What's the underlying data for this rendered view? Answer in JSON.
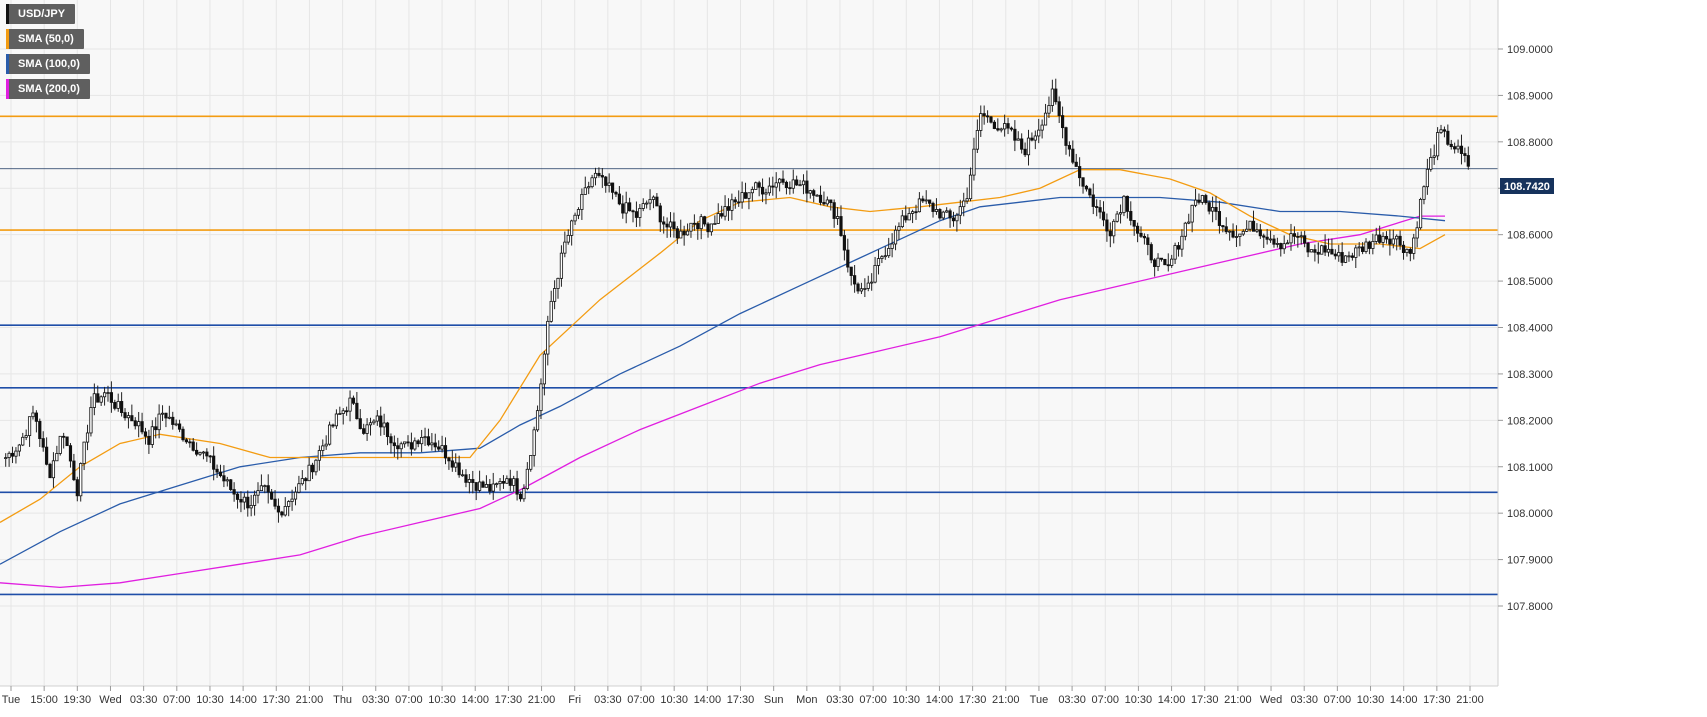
{
  "legend": [
    {
      "label": "USD/JPY",
      "color": "#111111"
    },
    {
      "label": "SMA (50,0)",
      "color": "#f39c12"
    },
    {
      "label": "SMA (100,0)",
      "color": "#2a5caa"
    },
    {
      "label": "SMA (200,0)",
      "color": "#e01fe0"
    }
  ],
  "price_badge": "108.7420",
  "chart_data": {
    "type": "candlestick",
    "symbol": "USD/JPY",
    "ylim": [
      107.75,
      109.1
    ],
    "y_ticks": [
      "107.8000",
      "107.9000",
      "108.0000",
      "108.1000",
      "108.2000",
      "108.3000",
      "108.4000",
      "108.5000",
      "108.6000",
      "108.7000",
      "108.8000",
      "108.9000",
      "109.0000"
    ],
    "x_ticks": [
      "Tue",
      "15:00",
      "19:30",
      "Wed",
      "03:30",
      "07:00",
      "10:30",
      "14:00",
      "17:30",
      "21:00",
      "Thu",
      "03:30",
      "07:00",
      "10:30",
      "14:00",
      "17:30",
      "21:00",
      "Fri",
      "03:30",
      "07:00",
      "10:30",
      "14:00",
      "17:30",
      "Sun",
      "Mon",
      "03:30",
      "07:00",
      "10:30",
      "14:00",
      "17:30",
      "21:00",
      "Tue",
      "03:30",
      "07:00",
      "10:30",
      "14:00",
      "17:30",
      "21:00",
      "Wed",
      "03:30",
      "07:00",
      "10:30",
      "14:00",
      "17:30",
      "21:00"
    ],
    "last_price": 108.742,
    "horizontal_levels": [
      {
        "value": 108.855,
        "color": "#f39c12"
      },
      {
        "value": 108.61,
        "color": "#f39c12"
      },
      {
        "value": 108.405,
        "color": "#1f4ea8"
      },
      {
        "value": 108.27,
        "color": "#1f4ea8"
      },
      {
        "value": 108.045,
        "color": "#1f4ea8"
      },
      {
        "value": 107.825,
        "color": "#1f4ea8"
      }
    ],
    "price_path": [
      108.12,
      108.15,
      108.22,
      108.08,
      108.18,
      108.05,
      108.24,
      108.26,
      108.22,
      108.2,
      108.16,
      108.22,
      108.18,
      108.15,
      108.12,
      108.08,
      108.04,
      108.02,
      108.05,
      108.0,
      108.04,
      108.08,
      108.14,
      108.2,
      108.24,
      108.18,
      108.2,
      108.16,
      108.14,
      108.17,
      108.15,
      108.12,
      108.08,
      108.06,
      108.05,
      108.08,
      108.04,
      108.2,
      108.45,
      108.58,
      108.66,
      108.73,
      108.7,
      108.66,
      108.64,
      108.68,
      108.62,
      108.6,
      108.63,
      108.62,
      108.65,
      108.67,
      108.7,
      108.7,
      108.72,
      108.71,
      108.7,
      108.68,
      108.64,
      108.5,
      108.47,
      108.55,
      108.6,
      108.65,
      108.67,
      108.65,
      108.63,
      108.68,
      108.86,
      108.84,
      108.82,
      108.78,
      108.83,
      108.9,
      108.8,
      108.72,
      108.66,
      108.61,
      108.68,
      108.6,
      108.55,
      108.52,
      108.6,
      108.68,
      108.66,
      108.62,
      108.6,
      108.62,
      108.6,
      108.58,
      108.6,
      108.56,
      108.57,
      108.55,
      108.56,
      108.58,
      108.6,
      108.59,
      108.56,
      108.72,
      108.82,
      108.79,
      108.75
    ],
    "sma_50": [
      [
        0,
        107.98
      ],
      [
        40,
        108.03
      ],
      [
        80,
        108.1
      ],
      [
        120,
        108.15
      ],
      [
        160,
        108.17
      ],
      [
        220,
        108.15
      ],
      [
        270,
        108.12
      ],
      [
        330,
        108.12
      ],
      [
        400,
        108.12
      ],
      [
        470,
        108.12
      ],
      [
        500,
        108.2
      ],
      [
        540,
        108.34
      ],
      [
        600,
        108.46
      ],
      [
        660,
        108.56
      ],
      [
        700,
        108.63
      ],
      [
        740,
        108.67
      ],
      [
        790,
        108.68
      ],
      [
        830,
        108.66
      ],
      [
        870,
        108.65
      ],
      [
        920,
        108.66
      ],
      [
        960,
        108.67
      ],
      [
        1000,
        108.68
      ],
      [
        1040,
        108.7
      ],
      [
        1080,
        108.74
      ],
      [
        1120,
        108.74
      ],
      [
        1170,
        108.72
      ],
      [
        1210,
        108.69
      ],
      [
        1250,
        108.64
      ],
      [
        1290,
        108.6
      ],
      [
        1330,
        108.58
      ],
      [
        1380,
        108.58
      ],
      [
        1420,
        108.57
      ],
      [
        1445,
        108.6
      ]
    ],
    "sma_100": [
      [
        0,
        107.89
      ],
      [
        60,
        107.96
      ],
      [
        120,
        108.02
      ],
      [
        180,
        108.06
      ],
      [
        240,
        108.1
      ],
      [
        300,
        108.12
      ],
      [
        360,
        108.13
      ],
      [
        420,
        108.13
      ],
      [
        480,
        108.14
      ],
      [
        520,
        108.19
      ],
      [
        560,
        108.23
      ],
      [
        620,
        108.3
      ],
      [
        680,
        108.36
      ],
      [
        740,
        108.43
      ],
      [
        800,
        108.49
      ],
      [
        860,
        108.55
      ],
      [
        900,
        108.59
      ],
      [
        940,
        108.63
      ],
      [
        980,
        108.66
      ],
      [
        1020,
        108.67
      ],
      [
        1060,
        108.68
      ],
      [
        1100,
        108.68
      ],
      [
        1160,
        108.68
      ],
      [
        1220,
        108.67
      ],
      [
        1280,
        108.65
      ],
      [
        1340,
        108.65
      ],
      [
        1400,
        108.64
      ],
      [
        1445,
        108.63
      ]
    ],
    "sma_200": [
      [
        0,
        107.85
      ],
      [
        60,
        107.84
      ],
      [
        120,
        107.85
      ],
      [
        180,
        107.87
      ],
      [
        240,
        107.89
      ],
      [
        300,
        107.91
      ],
      [
        360,
        107.95
      ],
      [
        420,
        107.98
      ],
      [
        480,
        108.01
      ],
      [
        520,
        108.05
      ],
      [
        580,
        108.12
      ],
      [
        640,
        108.18
      ],
      [
        700,
        108.23
      ],
      [
        760,
        108.28
      ],
      [
        820,
        108.32
      ],
      [
        880,
        108.35
      ],
      [
        940,
        108.38
      ],
      [
        1000,
        108.42
      ],
      [
        1060,
        108.46
      ],
      [
        1120,
        108.49
      ],
      [
        1180,
        108.52
      ],
      [
        1240,
        108.55
      ],
      [
        1300,
        108.58
      ],
      [
        1360,
        108.6
      ],
      [
        1420,
        108.64
      ],
      [
        1445,
        108.64
      ]
    ]
  }
}
